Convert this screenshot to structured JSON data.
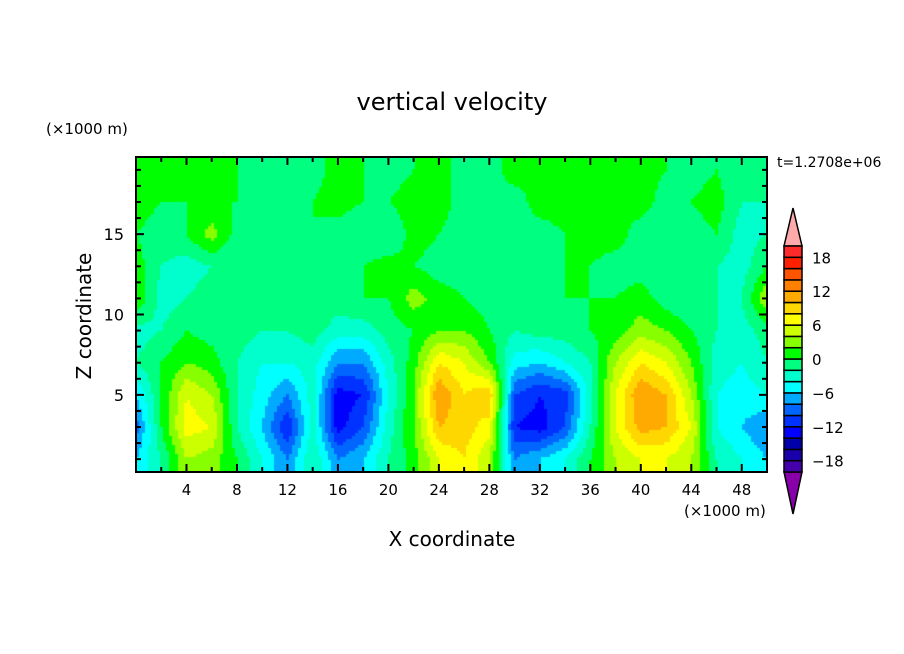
{
  "chart_data": {
    "type": "heatmap",
    "title": "vertical velocity",
    "xlabel": "X coordinate",
    "ylabel": "Z coordinate",
    "x_unit": "(×1000 m)",
    "y_unit": "(×1000 m)",
    "annotation": "t=1.2708e+06",
    "xlim": [
      0,
      50
    ],
    "ylim": [
      0.2,
      19.8
    ],
    "x_ticks": [
      4,
      8,
      12,
      16,
      20,
      24,
      28,
      32,
      36,
      40,
      44,
      48
    ],
    "y_ticks": [
      5,
      10,
      15
    ],
    "grid": false,
    "x": [
      0,
      2,
      4,
      6,
      8,
      10,
      12,
      14,
      16,
      18,
      20,
      22,
      24,
      26,
      28,
      30,
      32,
      34,
      36,
      38,
      40,
      42,
      44,
      46,
      48,
      50
    ],
    "z": [
      1,
      3,
      5,
      7,
      9,
      11,
      13,
      15,
      17,
      19
    ],
    "values": [
      [
        -6,
        -2,
        4,
        3,
        0,
        -4,
        -8,
        -2,
        -8,
        -6,
        -2,
        1,
        6,
        8,
        4,
        -8,
        -6,
        -4,
        0,
        4,
        6,
        6,
        4,
        -2,
        -4,
        -6
      ],
      [
        -9,
        0,
        7,
        6,
        -2,
        -6,
        -12,
        -3,
        -13,
        -10,
        -3,
        2,
        10,
        9,
        7,
        -12,
        -13,
        -10,
        -2,
        6,
        11,
        10,
        6,
        -4,
        -6,
        -8
      ],
      [
        -6,
        0,
        6,
        4,
        -2,
        -5,
        -8,
        -3,
        -13,
        -12,
        -4,
        2,
        12,
        8,
        10,
        -10,
        -12,
        -11,
        -3,
        6,
        12,
        10,
        4,
        -4,
        -5,
        -4
      ],
      [
        -2,
        0,
        2,
        1,
        -2,
        -4,
        -4,
        -3,
        -8,
        -8,
        -3,
        1,
        8,
        6,
        2,
        -5,
        -6,
        -4,
        -2,
        4,
        8,
        6,
        2,
        -3,
        -4,
        -2
      ],
      [
        -3,
        -2,
        0,
        -1,
        -1,
        -2,
        -2,
        -1,
        -3,
        -3,
        -1,
        0,
        2,
        2,
        0,
        -2,
        -1,
        -1,
        0,
        1,
        3,
        2,
        0,
        -2,
        -3,
        -1
      ],
      [
        2,
        -3,
        -2,
        -1,
        0,
        0,
        0,
        0,
        -1,
        0,
        0,
        3,
        1,
        0,
        -1,
        -1,
        0,
        0,
        0,
        0,
        1,
        -1,
        -2,
        -2,
        -2,
        4
      ],
      [
        1,
        -2,
        -3,
        -2,
        -2,
        -1,
        0,
        -1,
        -1,
        0,
        1,
        0,
        -1,
        -1,
        -1,
        -1,
        -1,
        0,
        0,
        -1,
        -1,
        -2,
        -1,
        -2,
        -3,
        0
      ],
      [
        0,
        -1,
        0,
        3,
        -1,
        -1,
        0,
        0,
        -1,
        -2,
        -2,
        1,
        0,
        -1,
        -2,
        -1,
        -1,
        0,
        1,
        1,
        -1,
        -2,
        -1,
        0,
        -3,
        -2
      ],
      [
        1,
        0,
        0,
        0,
        0,
        -1,
        -1,
        0,
        1,
        0,
        0,
        1,
        1,
        -1,
        0,
        -1,
        1,
        1,
        0,
        0,
        1,
        -1,
        0,
        1,
        -2,
        -2
      ],
      [
        0,
        1,
        0,
        1,
        0,
        -1,
        -1,
        -1,
        1,
        0,
        -1,
        0,
        1,
        -1,
        -1,
        1,
        0,
        1,
        1,
        0,
        1,
        0,
        -1,
        0,
        -2,
        -2
      ]
    ],
    "colorbar": {
      "levels": [
        -20,
        -18,
        -16,
        -14,
        -12,
        -10,
        -8,
        -6,
        -4,
        -2,
        0,
        2,
        4,
        6,
        8,
        10,
        12,
        14,
        16,
        18,
        20
      ],
      "tick_labels": [
        "18",
        "12",
        "6",
        "0",
        "-6",
        "-12",
        "-18"
      ],
      "tick_values": [
        18,
        12,
        6,
        0,
        -6,
        -12,
        -18
      ],
      "colors": [
        "#4400aa",
        "#1a00aa",
        "#0000aa",
        "#0000ff",
        "#0033ff",
        "#0066ff",
        "#00aaff",
        "#00ffff",
        "#00ffcc",
        "#00ff80",
        "#00ff00",
        "#88ff00",
        "#ccff00",
        "#ffff00",
        "#ffd700",
        "#ffaa00",
        "#ff7f00",
        "#ff5500",
        "#ff2000",
        "#ff2a2a"
      ],
      "under_color": "#8800aa",
      "over_color": "#ffaaaa"
    }
  }
}
